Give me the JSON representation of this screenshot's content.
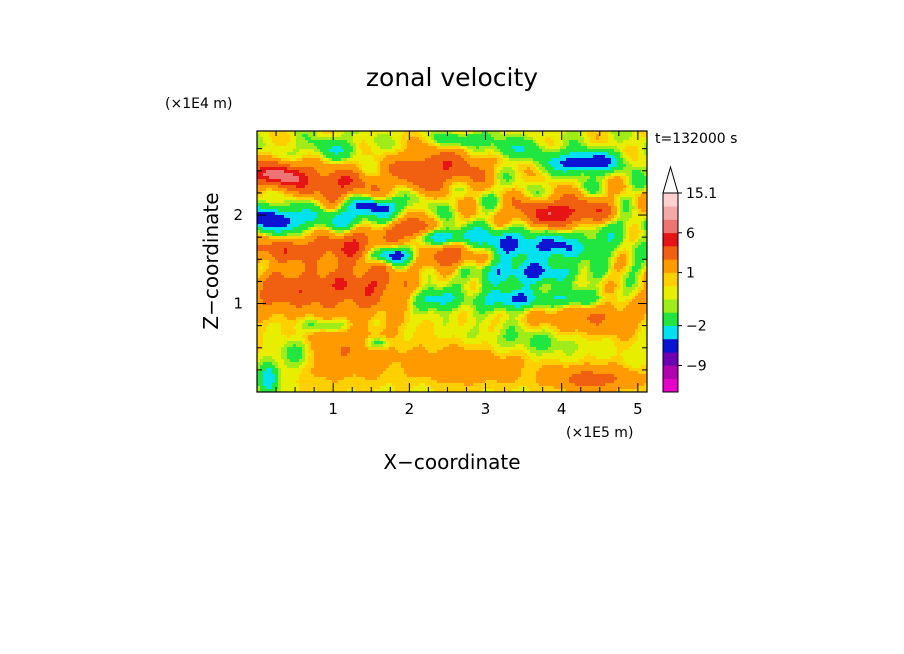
{
  "chart_data": {
    "type": "heatmap",
    "title": "zonal velocity",
    "xlabel": "X−coordinate",
    "ylabel": "Z−coordinate",
    "x_unit_label": "(×1E5 m)",
    "y_unit_label": "(×1E4 m)",
    "time_label": "t=132000 s",
    "xlim": [
      0.0,
      5.12
    ],
    "ylim": [
      0.0,
      2.95
    ],
    "x_ticks": [
      1,
      2,
      3,
      4,
      5
    ],
    "y_ticks": [
      1,
      2
    ],
    "x_minor_step": 0.25,
    "y_minor_step": 0.25,
    "colorbar": {
      "labels": [
        {
          "text": "15.1",
          "value": 15.1
        },
        {
          "text": "6",
          "value": 6
        },
        {
          "text": "1",
          "value": 1
        },
        {
          "text": "−2",
          "value": -2
        },
        {
          "text": "−9",
          "value": -9
        }
      ],
      "levels": [
        {
          "value": -12.0,
          "color": "#e600c8"
        },
        {
          "value": -9.0,
          "color": "#b000b0"
        },
        {
          "value": -6.0,
          "color": "#6e00b4"
        },
        {
          "value": -3.5,
          "color": "#0a14d2"
        },
        {
          "value": -2.0,
          "color": "#00e1f0"
        },
        {
          "value": -0.5,
          "color": "#22e640"
        },
        {
          "value": 0.0,
          "color": "#a0ec1a"
        },
        {
          "value": 0.5,
          "color": "#e8ee00"
        },
        {
          "value": 1.0,
          "color": "#ffd000"
        },
        {
          "value": 2.5,
          "color": "#ff9a00"
        },
        {
          "value": 4.5,
          "color": "#f06010"
        },
        {
          "value": 6.0,
          "color": "#e61414"
        },
        {
          "value": 9.0,
          "color": "#ee7474"
        },
        {
          "value": 12.0,
          "color": "#f5a8a8"
        },
        {
          "value": 15.1,
          "color": "#ffd0d0"
        }
      ],
      "overflow_color": "#ffffff"
    },
    "features": [
      {
        "x": 0.25,
        "z": 2.45,
        "amp": 6.5,
        "sx": 0.3,
        "sz": 0.1
      },
      {
        "x": 1.05,
        "z": 2.35,
        "amp": 4,
        "sx": 0.35,
        "sz": 0.12
      },
      {
        "x": 4.05,
        "z": 2.0,
        "amp": 6.5,
        "sx": 0.45,
        "sz": 0.12
      },
      {
        "x": 2.15,
        "z": 2.5,
        "amp": 3.5,
        "sx": 0.3,
        "sz": 0.15
      },
      {
        "x": 0.35,
        "z": 1.15,
        "amp": 3.5,
        "sx": 0.35,
        "sz": 0.15
      },
      {
        "x": 1.35,
        "z": 1.2,
        "amp": 4,
        "sx": 0.45,
        "sz": 0.18
      },
      {
        "x": 0.35,
        "z": 1.6,
        "amp": 3.5,
        "sx": 0.35,
        "sz": 0.1
      },
      {
        "x": 1.3,
        "z": 1.65,
        "amp": 4,
        "sx": 0.35,
        "sz": 0.12
      },
      {
        "x": 2.0,
        "z": 1.85,
        "amp": 4.5,
        "sx": 0.2,
        "sz": 0.08
      },
      {
        "x": 2.55,
        "z": 1.55,
        "amp": 4,
        "sx": 0.25,
        "sz": 0.1
      },
      {
        "x": 4.3,
        "z": 0.85,
        "amp": 2.5,
        "sx": 0.5,
        "sz": 0.2
      },
      {
        "x": 2.7,
        "z": 2.55,
        "amp": 2.5,
        "sx": 0.3,
        "sz": 0.15
      },
      {
        "x": 1.0,
        "z": 0.5,
        "amp": 2.2,
        "sx": 0.6,
        "sz": 0.25
      },
      {
        "x": 4.4,
        "z": 0.15,
        "amp": 3,
        "sx": 0.4,
        "sz": 0.1
      },
      {
        "x": 2.8,
        "z": 0.3,
        "amp": 2,
        "sx": 0.5,
        "sz": 0.15
      },
      {
        "x": 4.3,
        "z": 2.6,
        "amp": -5.5,
        "sx": 0.3,
        "sz": 0.08
      },
      {
        "x": 0.2,
        "z": 1.95,
        "amp": -5.5,
        "sx": 0.28,
        "sz": 0.1
      },
      {
        "x": 1.55,
        "z": 2.1,
        "amp": -4.5,
        "sx": 0.25,
        "sz": 0.07
      },
      {
        "x": 1.75,
        "z": 1.55,
        "amp": -6,
        "sx": 0.2,
        "sz": 0.07
      },
      {
        "x": 2.45,
        "z": 1.75,
        "amp": -4,
        "sx": 0.2,
        "sz": 0.06
      },
      {
        "x": 3.55,
        "z": 1.35,
        "amp": -4,
        "sx": 0.45,
        "sz": 0.1
      },
      {
        "x": 4.1,
        "z": 1.05,
        "amp": -3.5,
        "sx": 0.35,
        "sz": 0.08
      },
      {
        "x": 3.3,
        "z": 1.05,
        "amp": -4,
        "sx": 0.25,
        "sz": 0.08
      },
      {
        "x": 2.35,
        "z": 1.05,
        "amp": -3.5,
        "sx": 0.2,
        "sz": 0.08
      },
      {
        "x": 3.8,
        "z": 1.65,
        "amp": -4,
        "sx": 0.5,
        "sz": 0.1
      },
      {
        "x": 3.1,
        "z": 1.75,
        "amp": -2.5,
        "sx": 0.3,
        "sz": 0.1
      },
      {
        "x": 1.15,
        "z": 1.95,
        "amp": -2.5,
        "sx": 0.35,
        "sz": 0.08
      },
      {
        "x": 0.5,
        "z": 0.45,
        "amp": -2.5,
        "sx": 0.2,
        "sz": 0.15
      },
      {
        "x": 0.15,
        "z": 0.15,
        "amp": -4,
        "sx": 0.08,
        "sz": 0.12
      },
      {
        "x": 1.6,
        "z": 0.55,
        "amp": -2.5,
        "sx": 0.12,
        "sz": 0.05
      },
      {
        "x": 0.9,
        "z": 0.75,
        "amp": -2,
        "sx": 0.3,
        "sz": 0.06
      },
      {
        "x": 4.4,
        "z": 1.9,
        "amp": -2.5,
        "sx": 0.5,
        "sz": 0.1
      },
      {
        "x": 2.7,
        "z": 2.85,
        "amp": -2.5,
        "sx": 0.2,
        "sz": 0.05
      },
      {
        "x": 3.3,
        "z": 2.75,
        "amp": -2,
        "sx": 0.3,
        "sz": 0.08
      },
      {
        "x": 3.8,
        "z": 0.6,
        "amp": -1.5,
        "sx": 0.5,
        "sz": 0.12
      },
      {
        "x": 1.0,
        "z": 2.75,
        "amp": -1.8,
        "sx": 0.25,
        "sz": 0.08
      }
    ]
  }
}
